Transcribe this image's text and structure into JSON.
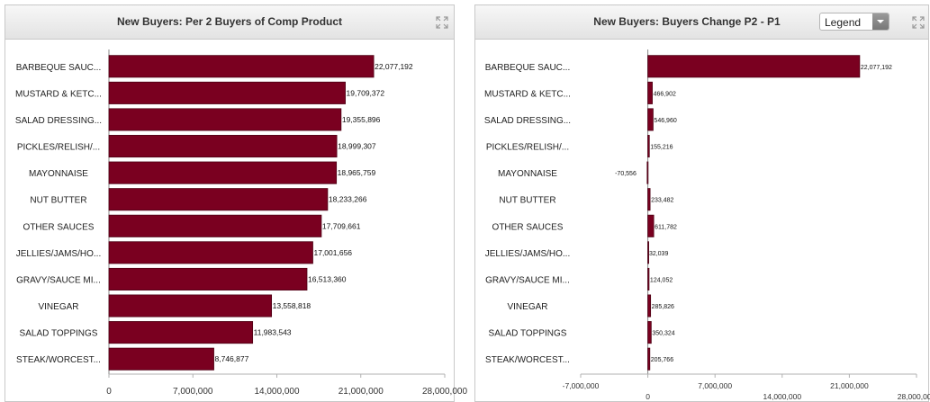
{
  "left_panel": {
    "title": "New Buyers: Per 2 Buyers of Comp Product",
    "expand_icon": "expand-arrows-icon"
  },
  "right_panel": {
    "title": "New Buyers: Buyers Change P2 - P1",
    "legend_label": "Legend",
    "expand_icon": "expand-arrows-icon",
    "dropdown_icon": "chevron-down-icon"
  },
  "colors": {
    "bar": "#7a0020",
    "bar_border": "#4d0014",
    "axis": "#888888"
  },
  "chart_data": [
    {
      "type": "bar",
      "orientation": "horizontal",
      "title": "New Buyers: Per 2 Buyers of Comp Product",
      "categories": [
        "BARBEQUE SAUC...",
        "MUSTARD & KETC...",
        "SALAD DRESSING...",
        "PICKLES/RELISH/...",
        "MAYONNAISE",
        "NUT BUTTER",
        "OTHER SAUCES",
        "JELLIES/JAMS/HO...",
        "GRAVY/SAUCE MI...",
        "VINEGAR",
        "SALAD TOPPINGS",
        "STEAK/WORCEST..."
      ],
      "values": [
        22077192,
        19709372,
        19355896,
        18999307,
        18965759,
        18233266,
        17709661,
        17001656,
        16513360,
        13558818,
        11983543,
        8746877
      ],
      "data_labels": [
        "22,077,192",
        "19,709,372",
        "19,355,896",
        "18,999,307",
        "18,965,759",
        "18,233,266",
        "17,709,661",
        "17,001,656",
        "16,513,360",
        "13,558,818",
        "11,983,543",
        "8,746,877"
      ],
      "xlim": [
        0,
        28000000
      ],
      "xticks": [
        0,
        7000000,
        14000000,
        21000000,
        28000000
      ],
      "xtick_labels": [
        "0",
        "7,000,000",
        "14,000,000",
        "21,000,000",
        "28,000,000"
      ],
      "xlabel": "",
      "ylabel": "",
      "grid": false
    },
    {
      "type": "bar",
      "orientation": "horizontal",
      "title": "New Buyers: Buyers Change P2 - P1",
      "categories": [
        "BARBEQUE SAUC...",
        "MUSTARD & KETC...",
        "SALAD DRESSING...",
        "PICKLES/RELISH/...",
        "MAYONNAISE",
        "NUT BUTTER",
        "OTHER SAUCES",
        "JELLIES/JAMS/HO...",
        "GRAVY/SAUCE MI...",
        "VINEGAR",
        "SALAD TOPPINGS",
        "STEAK/WORCEST..."
      ],
      "values": [
        22077192,
        466902,
        546960,
        155216,
        -70556,
        233482,
        611782,
        32039,
        124052,
        285826,
        350324,
        205766
      ],
      "data_labels": [
        "22,077,192",
        "466,902",
        "546,960",
        "155,216",
        "-70,556",
        "233,482",
        "611,782",
        "32,039",
        "124,052",
        "285,826",
        "350,324",
        "205,766"
      ],
      "xlim": [
        -7000000,
        28000000
      ],
      "xticks": [
        -7000000,
        0,
        7000000,
        14000000,
        21000000,
        28000000
      ],
      "xtick_labels": [
        "-7,000,000",
        "0",
        "7,000,000",
        "14,000,000",
        "21,000,000",
        "28,000,000"
      ],
      "xlabel": "",
      "ylabel": "",
      "grid": false,
      "legend": "hidden"
    }
  ]
}
